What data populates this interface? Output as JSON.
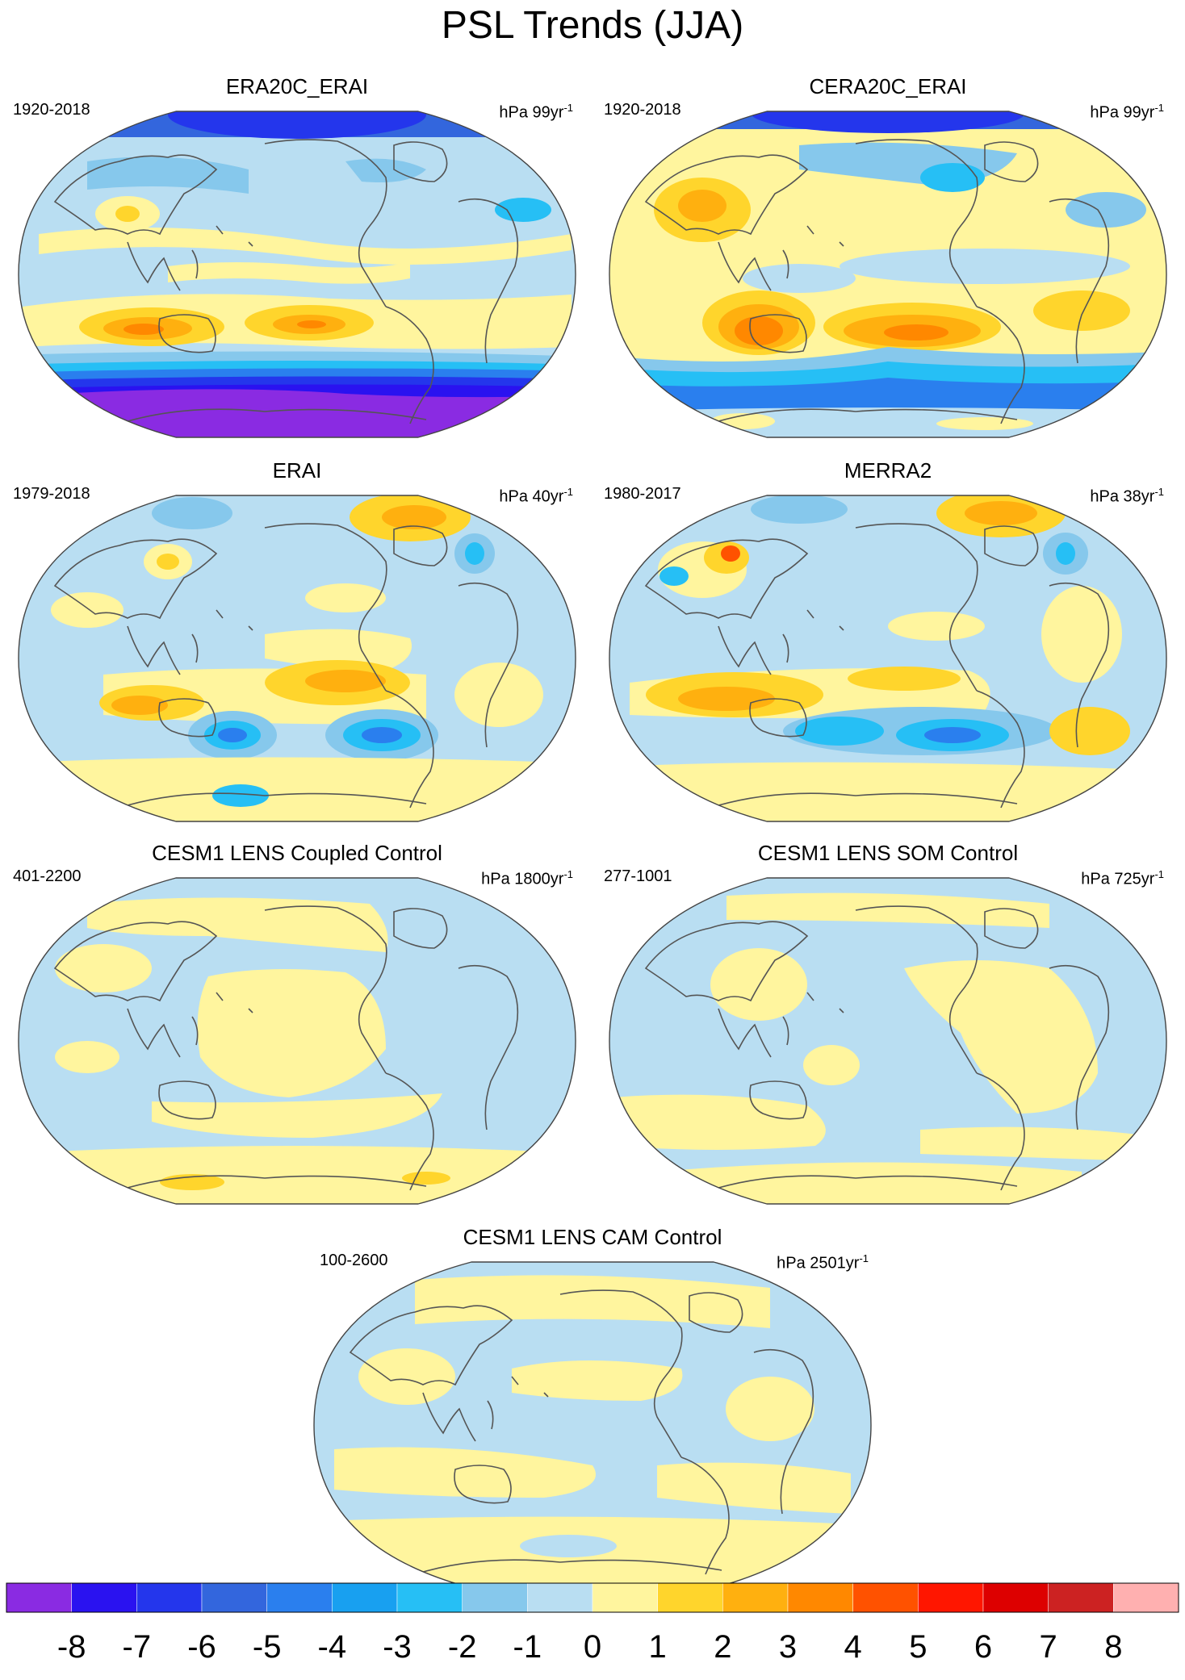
{
  "figure": {
    "title": "PSL Trends (JJA)"
  },
  "panels": [
    {
      "id": "era20c",
      "title": "ERA20C_ERAI",
      "period": "1920-2018",
      "units_prefix": "hPa 99yr",
      "units_exp": "-1"
    },
    {
      "id": "cera20c",
      "title": "CERA20C_ERAI",
      "period": "1920-2018",
      "units_prefix": "hPa 99yr",
      "units_exp": "-1"
    },
    {
      "id": "erai",
      "title": "ERAI",
      "period": "1979-2018",
      "units_prefix": "hPa 40yr",
      "units_exp": "-1"
    },
    {
      "id": "merra2",
      "title": "MERRA2",
      "period": "1980-2017",
      "units_prefix": "hPa 38yr",
      "units_exp": "-1"
    },
    {
      "id": "coupled",
      "title": "CESM1 LENS Coupled Control",
      "period": "401-2200",
      "units_prefix": "hPa 1800yr",
      "units_exp": "-1"
    },
    {
      "id": "som",
      "title": "CESM1 LENS SOM Control",
      "period": "277-1001",
      "units_prefix": "hPa 725yr",
      "units_exp": "-1"
    },
    {
      "id": "cam",
      "title": "CESM1 LENS CAM Control",
      "period": "100-2600",
      "units_prefix": "hPa 2501yr",
      "units_exp": "-1"
    }
  ],
  "colorbar": {
    "labels": [
      "-8",
      "-7",
      "-6",
      "-5",
      "-4",
      "-3",
      "-2",
      "-1",
      "0",
      "1",
      "2",
      "3",
      "4",
      "5",
      "6",
      "7",
      "8"
    ],
    "colors": [
      "#8a2be2",
      "#2a12f0",
      "#2436ec",
      "#3366dd",
      "#2a7fee",
      "#18a0f0",
      "#26bff5",
      "#86c8ec",
      "#b9def2",
      "#fff59e",
      "#ffd52c",
      "#ffb00f",
      "#ff8800",
      "#ff5200",
      "#ff1600",
      "#dd0000",
      "#cc2222",
      "#ffb0b0"
    ]
  }
}
